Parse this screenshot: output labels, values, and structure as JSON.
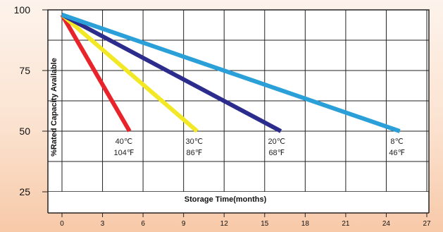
{
  "chart_data": {
    "type": "line",
    "xlabel": "Storage Time(months)",
    "ylabel": "%Rated Capacity Available",
    "xlim": [
      0,
      27
    ],
    "ylim": [
      25,
      100
    ],
    "x_ticks": [
      "0",
      "3",
      "6",
      "9",
      "12",
      "15",
      "18",
      "21",
      "24",
      "27"
    ],
    "y_ticks": [
      "100",
      "75",
      "50",
      "25"
    ],
    "grid": true,
    "series": [
      {
        "color": "#e8232a",
        "x": [
          0,
          5
        ],
        "y": [
          98,
          50
        ],
        "label_lines": [
          "40℃",
          "104℉"
        ]
      },
      {
        "color": "#f2e826",
        "x": [
          0,
          10
        ],
        "y": [
          98,
          50
        ],
        "label_lines": [
          "30℃",
          "86℉"
        ]
      },
      {
        "color": "#2b2c8c",
        "x": [
          0,
          16.2
        ],
        "y": [
          98,
          50
        ],
        "label_lines": [
          "20℃",
          "68℉"
        ]
      },
      {
        "color": "#2a9fd8",
        "x": [
          0,
          25
        ],
        "y": [
          98,
          50
        ],
        "label_lines": [
          "8℃",
          "46℉"
        ]
      }
    ]
  }
}
